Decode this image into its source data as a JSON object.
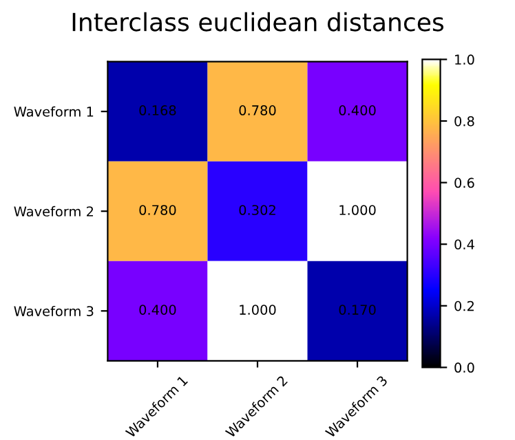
{
  "chart_data": {
    "type": "heatmap",
    "title": "Interclass euclidean distances",
    "categories": [
      "Waveform 1",
      "Waveform 2",
      "Waveform 3"
    ],
    "y_categories": [
      "Waveform 1",
      "Waveform 2",
      "Waveform 3"
    ],
    "cells": [
      [
        0.168,
        0.78,
        0.4
      ],
      [
        0.78,
        0.302,
        1.0
      ],
      [
        0.4,
        1.0,
        0.17
      ]
    ],
    "cell_labels": [
      [
        "0.168",
        "0.780",
        "0.400"
      ],
      [
        "0.780",
        "0.302",
        "1.000"
      ],
      [
        "0.400",
        "1.000",
        "0.170"
      ]
    ],
    "clim": [
      0,
      1.0
    ],
    "cticks": [
      {
        "value": 0,
        "label": "0.0"
      },
      {
        "value": 0.2,
        "label": "0.2"
      },
      {
        "value": 0.4,
        "label": "0.4"
      },
      {
        "value": 0.6,
        "label": "0.6"
      },
      {
        "value": 0.8,
        "label": "0.8"
      },
      {
        "value": 1,
        "label": "1.0"
      }
    ]
  }
}
